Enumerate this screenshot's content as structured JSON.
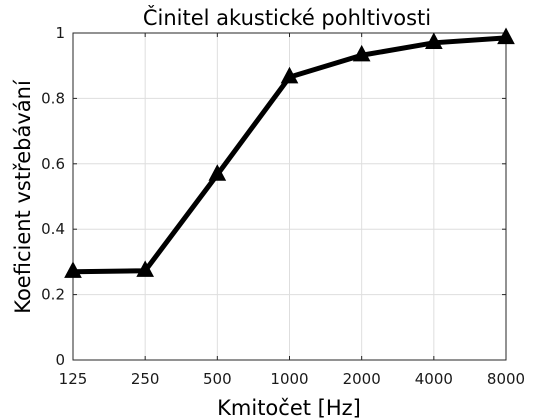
{
  "chart_data": {
    "type": "line",
    "title": "Činitel akustické pohltivosti",
    "xlabel": "Kmitočet [Hz]",
    "ylabel": "Koeficient vstřebávání",
    "x_scale": "categorical",
    "categories": [
      "125",
      "250",
      "500",
      "1000",
      "2000",
      "4000",
      "8000"
    ],
    "yticks": [
      "0",
      "0.2",
      "0.4",
      "0.6",
      "0.8",
      "1"
    ],
    "ylim": [
      0,
      1
    ],
    "grid": true,
    "legend": "none",
    "series": [
      {
        "values": [
          0.27,
          0.273,
          0.567,
          0.865,
          0.932,
          0.97,
          0.985
        ],
        "color": "#000000",
        "marker": "triangle-up"
      }
    ]
  }
}
